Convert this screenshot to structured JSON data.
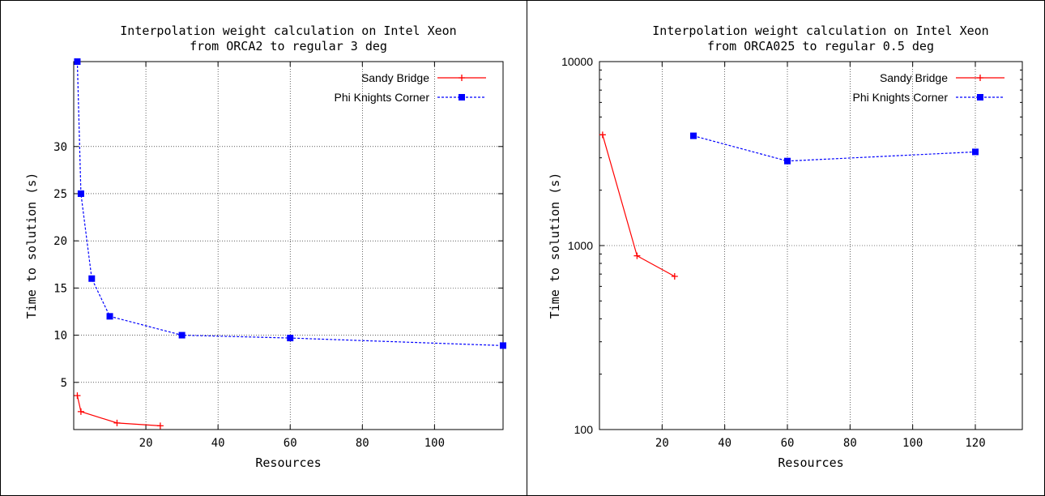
{
  "chart_data": [
    {
      "type": "line",
      "title": [
        "Interpolation weight calculation on Intel Xeon",
        "from ORCA2 to regular 3 deg"
      ],
      "xlabel": "Resources",
      "ylabel": "Time to solution (s)",
      "xlim": [
        0,
        119
      ],
      "ylim": [
        0,
        39
      ],
      "yscale": "linear",
      "xticks": [
        20,
        40,
        60,
        80,
        100
      ],
      "yticks": [
        5,
        10,
        15,
        20,
        25,
        30
      ],
      "grid": true,
      "legend": "top-right",
      "series": [
        {
          "name": "Sandy Bridge",
          "color": "#ff0000",
          "marker": "plus",
          "dash": false,
          "points": [
            [
              1,
              3.6
            ],
            [
              2,
              1.9
            ],
            [
              12,
              0.7
            ],
            [
              24,
              0.4
            ]
          ]
        },
        {
          "name": "Phi Knights Corner",
          "color": "#0000ff",
          "marker": "square",
          "dash": true,
          "points": [
            [
              1,
              39
            ],
            [
              2,
              25
            ],
            [
              5,
              16
            ],
            [
              10,
              12
            ],
            [
              30,
              10
            ],
            [
              60,
              9.7
            ],
            [
              119,
              8.9
            ]
          ]
        }
      ]
    },
    {
      "type": "line",
      "title": [
        "Interpolation weight calculation on Intel Xeon",
        "from ORCA025 to regular 0.5 deg"
      ],
      "xlabel": "Resources",
      "ylabel": "Time to solution (s)",
      "xlim": [
        0,
        135
      ],
      "ylim": [
        100,
        10000
      ],
      "yscale": "log",
      "xticks": [
        20,
        40,
        60,
        80,
        100,
        120
      ],
      "yticks": [
        100,
        1000,
        10000
      ],
      "grid": true,
      "legend": "top-right",
      "series": [
        {
          "name": "Sandy Bridge",
          "color": "#ff0000",
          "marker": "plus",
          "dash": false,
          "points": [
            [
              1,
              4000
            ],
            [
              12,
              880
            ],
            [
              24,
              680
            ]
          ]
        },
        {
          "name": "Phi Knights Corner",
          "color": "#0000ff",
          "marker": "square",
          "dash": true,
          "points": [
            [
              30,
              3950
            ],
            [
              60,
              2880
            ],
            [
              120,
              3230
            ]
          ]
        }
      ]
    }
  ]
}
